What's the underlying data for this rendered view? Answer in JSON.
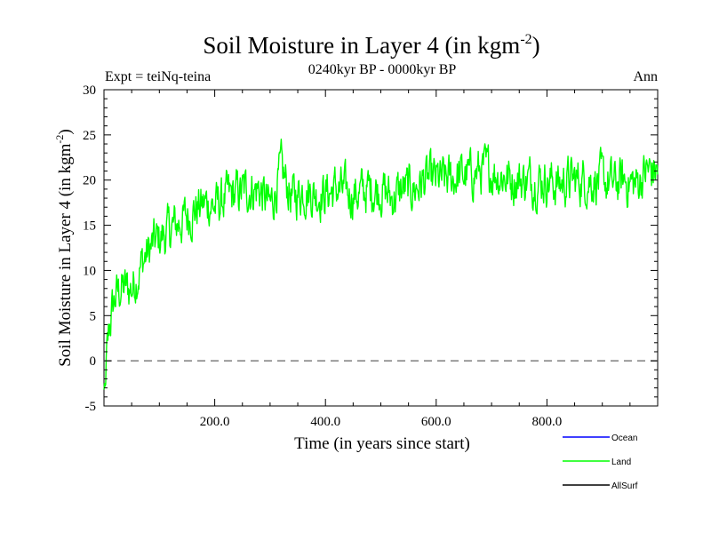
{
  "chart_data": {
    "type": "line",
    "title": "Soil Moisture in Layer 4 (in kgm",
    "title_sup": "-2",
    "title_close": ")",
    "subtitle": "0240kyr BP - 0000kyr BP",
    "left_note": "Expt = teiNq-teina",
    "right_note": "Ann",
    "xlabel": "Time (in years since start)",
    "ylabel": "Soil Moisture in Layer 4 (in kgm",
    "ylabel_sup": "-2",
    "ylabel_close": ")",
    "xlim": [
      0,
      1000
    ],
    "ylim": [
      -5,
      30
    ],
    "xticks": [
      200,
      400,
      600,
      800
    ],
    "xtick_labels": [
      "200.0",
      "400.0",
      "600.0",
      "800.0"
    ],
    "yticks": [
      -5,
      0,
      5,
      10,
      15,
      20,
      25,
      30
    ],
    "ytick_labels": [
      "-5",
      "0",
      "5",
      "10",
      "15",
      "20",
      "25",
      "30"
    ],
    "zero_line": 0,
    "series": [
      {
        "name": "Ocean",
        "color": "#0000ff",
        "values": []
      },
      {
        "name": "Land",
        "color": "#00ff00",
        "x": [
          0,
          10,
          20,
          30,
          50,
          70,
          90,
          110,
          130,
          150,
          170,
          190,
          200,
          220,
          240,
          260,
          280,
          300,
          320,
          340,
          360,
          380,
          400,
          420,
          440,
          460,
          480,
          500,
          520,
          540,
          560,
          580,
          600,
          620,
          640,
          660,
          680,
          700,
          720,
          740,
          760,
          780,
          800,
          820,
          840,
          860,
          880,
          900,
          920,
          940,
          960,
          980,
          1000
        ],
        "values": [
          -3,
          4,
          7,
          8,
          8,
          11,
          13,
          14,
          15,
          16,
          17,
          17.5,
          17,
          18,
          18.5,
          19,
          19,
          17,
          21,
          18,
          19,
          18.5,
          18.5,
          19,
          18.5,
          18.5,
          19,
          19,
          18,
          19,
          19,
          20,
          20,
          20,
          20.5,
          20.5,
          21,
          21,
          20.5,
          20,
          20,
          20,
          20,
          19.5,
          20,
          20,
          20,
          20,
          19.5,
          20,
          19.5,
          21,
          21
        ]
      },
      {
        "name": "AllSurf",
        "color": "#000000",
        "values": []
      }
    ],
    "legend_position": "bottom-right"
  }
}
